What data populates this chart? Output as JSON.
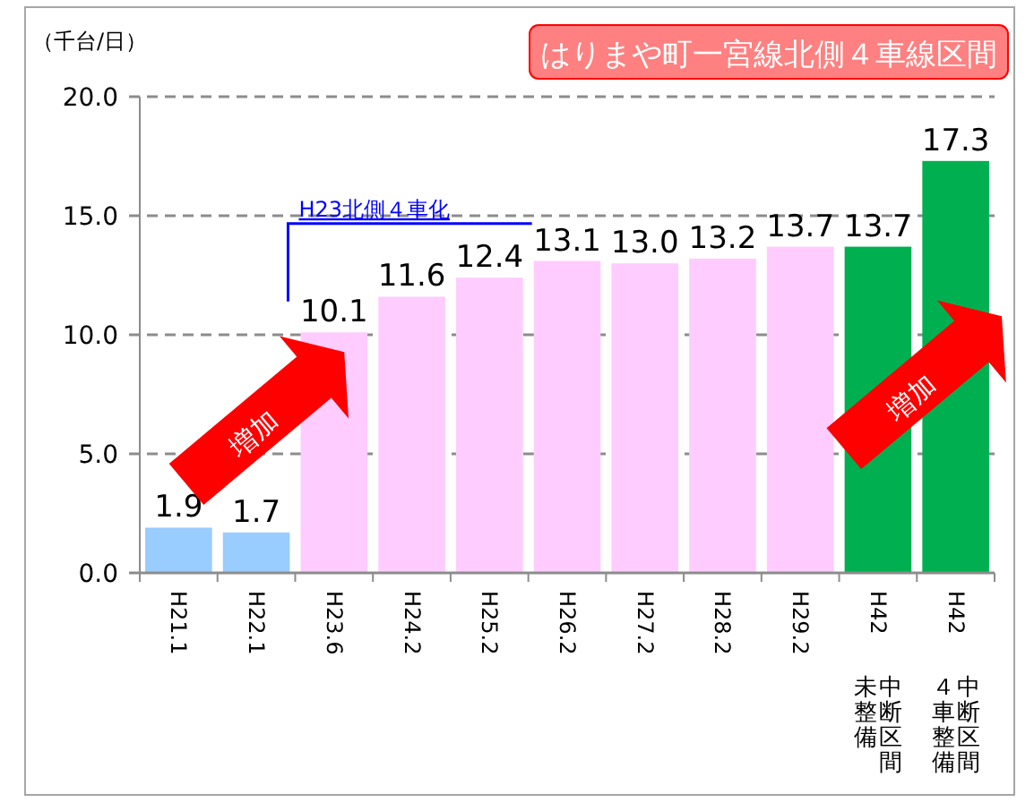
{
  "chart_data": {
    "type": "bar",
    "title": "はりまや町一宮線北側４車線区間",
    "ylabel": "（千台/日）",
    "categories": [
      "H21.1",
      "H22.1",
      "H23.6",
      "H24.2",
      "H25.2",
      "H26.2",
      "H27.2",
      "H28.2",
      "H29.2",
      "H42 中断区間未整備",
      "H42 中断区間４車整備"
    ],
    "values": [
      1.9,
      1.7,
      10.1,
      11.6,
      12.4,
      13.1,
      13.0,
      13.2,
      13.7,
      13.7,
      17.3
    ],
    "colors": [
      "#99ccff",
      "#99ccff",
      "#ffccff",
      "#ffccff",
      "#ffccff",
      "#ffccff",
      "#ffccff",
      "#ffccff",
      "#ffccff",
      "#00b050",
      "#00b050"
    ],
    "value_labels": [
      "1.9",
      "1.7",
      "10.1",
      "11.6",
      "12.4",
      "13.1",
      "13.0",
      "13.2",
      "13.7",
      "13.7",
      "17.3"
    ],
    "ylim": [
      0,
      20
    ],
    "yticks": [
      {
        "value": 0,
        "label": "0.0"
      },
      {
        "value": 5,
        "label": "5.0"
      },
      {
        "value": 10,
        "label": "10.0"
      },
      {
        "value": 15,
        "label": "15.0"
      },
      {
        "value": 20,
        "label": "20.0"
      }
    ],
    "grid": "y",
    "annotations": [
      "H23北側４車化",
      "増加",
      "増加"
    ]
  }
}
